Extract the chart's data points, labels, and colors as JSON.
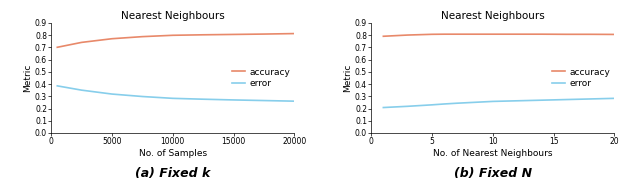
{
  "title": "Nearest Neighbours",
  "subplot_a": {
    "xlabel": "No. of Samples",
    "ylabel": "Metric",
    "caption": "(a) Fixed k",
    "xlim": [
      0,
      20000
    ],
    "ylim": [
      0.0,
      0.9
    ],
    "xticks": [
      0,
      5000,
      10000,
      15000,
      20000
    ],
    "yticks": [
      0.0,
      0.1,
      0.2,
      0.3,
      0.4,
      0.5,
      0.6,
      0.7,
      0.8,
      0.9
    ],
    "accuracy_x": [
      500,
      2500,
      5000,
      7500,
      10000,
      12500,
      15000,
      17500,
      20000
    ],
    "accuracy_y": [
      0.7,
      0.74,
      0.77,
      0.787,
      0.798,
      0.802,
      0.805,
      0.808,
      0.812
    ],
    "error_x": [
      500,
      2500,
      5000,
      7500,
      10000,
      12500,
      15000,
      17500,
      20000
    ],
    "error_y": [
      0.385,
      0.35,
      0.318,
      0.298,
      0.283,
      0.276,
      0.27,
      0.265,
      0.26
    ]
  },
  "subplot_b": {
    "xlabel": "No. of Nearest Neighbours",
    "ylabel": "Metric",
    "caption": "(b) Fixed N",
    "xlim": [
      0,
      20
    ],
    "ylim": [
      0.0,
      0.9
    ],
    "xticks": [
      0,
      5,
      10,
      15,
      20
    ],
    "yticks": [
      0.0,
      0.1,
      0.2,
      0.3,
      0.4,
      0.5,
      0.6,
      0.7,
      0.8,
      0.9
    ],
    "accuracy_x": [
      1,
      2,
      3,
      4,
      5,
      6,
      7,
      8,
      9,
      10,
      12,
      14,
      16,
      18,
      20
    ],
    "accuracy_y": [
      0.79,
      0.795,
      0.8,
      0.803,
      0.806,
      0.807,
      0.807,
      0.807,
      0.807,
      0.807,
      0.807,
      0.807,
      0.806,
      0.806,
      0.805
    ],
    "error_x": [
      1,
      2,
      3,
      4,
      5,
      6,
      7,
      8,
      9,
      10,
      12,
      14,
      16,
      18,
      20
    ],
    "error_y": [
      0.208,
      0.213,
      0.218,
      0.224,
      0.23,
      0.237,
      0.243,
      0.248,
      0.253,
      0.258,
      0.263,
      0.268,
      0.273,
      0.278,
      0.283
    ]
  },
  "accuracy_color": "#E8896A",
  "error_color": "#87CEEB",
  "legend_accuracy": "accuracy",
  "legend_error": "error",
  "title_fontsize": 7.5,
  "label_fontsize": 6.5,
  "tick_fontsize": 5.5,
  "legend_fontsize": 6.5,
  "caption_fontsize": 9,
  "linewidth": 1.2
}
